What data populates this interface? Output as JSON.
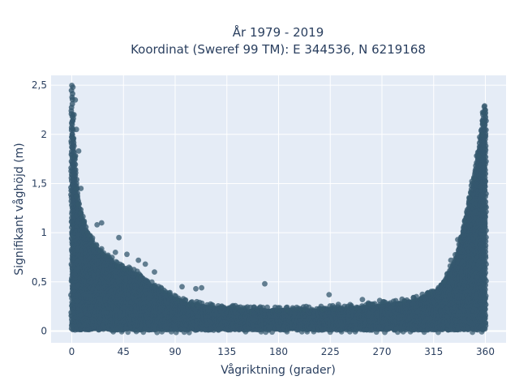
{
  "chart_data": {
    "type": "scatter",
    "title_lines": [
      "År 1979 - 2019",
      "Koordinat (Sweref 99 TM): E 344536, N 6219168"
    ],
    "xlabel": "Vågriktning (grader)",
    "ylabel": "Signifikant våghöjd (m)",
    "xlim": [
      -18,
      378
    ],
    "ylim": [
      -0.12,
      2.6
    ],
    "x_ticks": [
      0,
      45,
      90,
      135,
      180,
      225,
      270,
      315,
      360
    ],
    "x_tick_labels": [
      "0",
      "45",
      "90",
      "135",
      "180",
      "225",
      "270",
      "315",
      "360"
    ],
    "y_ticks": [
      0,
      0.5,
      1,
      1.5,
      2,
      2.5
    ],
    "y_tick_labels": [
      "0",
      "0,5",
      "1",
      "1,5",
      "2",
      "2,5"
    ],
    "grid": true,
    "marker_color": "#34586e",
    "plot_bg": "#e5ecf6",
    "series": [
      {
        "envelope": {
          "direction": [
            0,
            2,
            5,
            10,
            15,
            20,
            30,
            40,
            50,
            60,
            70,
            80,
            90,
            100,
            110,
            120,
            135,
            150,
            165,
            180,
            195,
            210,
            225,
            240,
            255,
            270,
            285,
            300,
            315,
            325,
            335,
            340,
            345,
            350,
            355,
            358,
            360
          ],
          "upper_height": [
            2.45,
            1.9,
            1.35,
            1.1,
            0.95,
            0.85,
            0.75,
            0.65,
            0.6,
            0.55,
            0.45,
            0.38,
            0.32,
            0.27,
            0.25,
            0.23,
            0.22,
            0.2,
            0.2,
            0.2,
            0.2,
            0.2,
            0.21,
            0.22,
            0.23,
            0.25,
            0.27,
            0.3,
            0.38,
            0.5,
            0.75,
            1.0,
            1.25,
            1.55,
            1.9,
            2.2,
            2.25
          ],
          "lower_height": 0.02
        },
        "outliers": [
          {
            "x": 1,
            "y": 2.48
          },
          {
            "x": 3,
            "y": 2.35
          },
          {
            "x": 2,
            "y": 2.2
          },
          {
            "x": 4,
            "y": 2.05
          },
          {
            "x": 6,
            "y": 1.83
          },
          {
            "x": 8,
            "y": 1.45
          },
          {
            "x": 22,
            "y": 1.08
          },
          {
            "x": 26,
            "y": 1.1
          },
          {
            "x": 38,
            "y": 0.8
          },
          {
            "x": 41,
            "y": 0.95
          },
          {
            "x": 48,
            "y": 0.78
          },
          {
            "x": 58,
            "y": 0.72
          },
          {
            "x": 64,
            "y": 0.68
          },
          {
            "x": 72,
            "y": 0.6
          },
          {
            "x": 96,
            "y": 0.45
          },
          {
            "x": 108,
            "y": 0.43
          },
          {
            "x": 113,
            "y": 0.44
          },
          {
            "x": 168,
            "y": 0.48
          },
          {
            "x": 204,
            "y": 0.25
          },
          {
            "x": 224,
            "y": 0.37
          },
          {
            "x": 232,
            "y": 0.27
          },
          {
            "x": 253,
            "y": 0.32
          },
          {
            "x": 268,
            "y": 0.31
          },
          {
            "x": 300,
            "y": 0.35
          },
          {
            "x": 324,
            "y": 0.5
          },
          {
            "x": 330,
            "y": 0.72
          },
          {
            "x": 336,
            "y": 0.93
          },
          {
            "x": 342,
            "y": 1.12
          },
          {
            "x": 346,
            "y": 1.35
          },
          {
            "x": 350,
            "y": 1.55
          },
          {
            "x": 354,
            "y": 1.78
          },
          {
            "x": 357,
            "y": 2.0
          },
          {
            "x": 358,
            "y": 2.12
          },
          {
            "x": 359,
            "y": 2.22
          },
          {
            "x": 359,
            "y": 2.28
          }
        ]
      }
    ]
  }
}
